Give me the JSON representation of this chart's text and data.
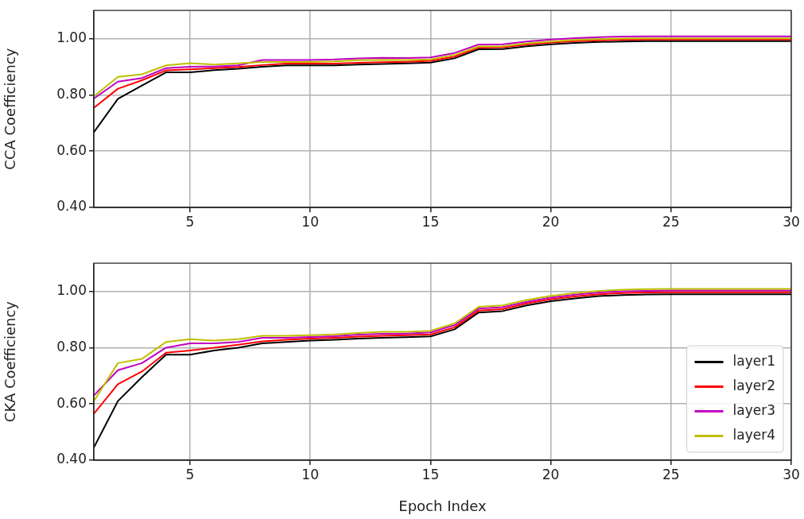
{
  "chart_data": [
    {
      "type": "line",
      "ylabel": "CCA Coefficiency",
      "x": [
        1,
        2,
        3,
        4,
        5,
        6,
        7,
        8,
        9,
        10,
        11,
        12,
        13,
        14,
        15,
        16,
        17,
        18,
        19,
        20,
        21,
        22,
        23,
        24,
        25,
        26,
        27,
        28,
        29,
        30
      ],
      "series": [
        {
          "color": "#000000",
          "values": [
            0.667,
            0.786,
            0.833,
            0.88,
            0.88,
            0.888,
            0.893,
            0.9,
            0.905,
            0.905,
            0.905,
            0.908,
            0.91,
            0.912,
            0.915,
            0.93,
            0.962,
            0.963,
            0.973,
            0.98,
            0.985,
            0.988,
            0.99,
            0.991,
            0.991,
            0.991,
            0.991,
            0.991,
            0.991,
            0.991
          ]
        },
        {
          "color": "#ff0000",
          "values": [
            0.754,
            0.822,
            0.852,
            0.887,
            0.891,
            0.895,
            0.899,
            0.906,
            0.911,
            0.911,
            0.911,
            0.914,
            0.916,
            0.918,
            0.921,
            0.936,
            0.968,
            0.969,
            0.979,
            0.986,
            0.991,
            0.994,
            0.996,
            0.997,
            0.997,
            0.997,
            0.997,
            0.997,
            0.997,
            0.997
          ]
        },
        {
          "color": "#bf00bf",
          "values": [
            0.787,
            0.847,
            0.86,
            0.895,
            0.9,
            0.901,
            0.905,
            0.924,
            0.924,
            0.924,
            0.926,
            0.93,
            0.932,
            0.931,
            0.933,
            0.949,
            0.979,
            0.98,
            0.99,
            0.997,
            1.002,
            1.005,
            1.007,
            1.008,
            1.008,
            1.008,
            1.008,
            1.008,
            1.008,
            1.008
          ]
        },
        {
          "color": "#bfbf00",
          "values": [
            0.795,
            0.864,
            0.873,
            0.905,
            0.913,
            0.908,
            0.912,
            0.917,
            0.917,
            0.917,
            0.919,
            0.923,
            0.925,
            0.924,
            0.926,
            0.942,
            0.972,
            0.973,
            0.983,
            0.99,
            0.995,
            0.998,
            1.0,
            1.001,
            1.001,
            1.001,
            1.001,
            1.001,
            1.001,
            1.001
          ]
        }
      ],
      "xlim": [
        1,
        30
      ],
      "xticks": [
        5,
        10,
        15,
        20,
        25,
        30
      ],
      "ylim": [
        0.4,
        1.1
      ],
      "yticks": [
        {
          "value": 0.4,
          "label": "0.40"
        },
        {
          "value": 0.6,
          "label": "0.60"
        },
        {
          "value": 0.8,
          "label": "0.80"
        },
        {
          "value": 1.0,
          "label": "1.00"
        }
      ],
      "grid": true,
      "marker": "none",
      "line_style": "solid"
    },
    {
      "type": "line",
      "xlabel": "Epoch Index",
      "ylabel": "CKA Coefficiency",
      "x": [
        1,
        2,
        3,
        4,
        5,
        6,
        7,
        8,
        9,
        10,
        11,
        12,
        13,
        14,
        15,
        16,
        17,
        18,
        19,
        20,
        21,
        22,
        23,
        24,
        25,
        26,
        27,
        28,
        29,
        30
      ],
      "series": [
        {
          "name": "layer1",
          "color": "#000000",
          "values": [
            0.445,
            0.61,
            0.695,
            0.775,
            0.775,
            0.79,
            0.8,
            0.815,
            0.82,
            0.825,
            0.828,
            0.832,
            0.835,
            0.837,
            0.84,
            0.865,
            0.925,
            0.93,
            0.95,
            0.965,
            0.975,
            0.983,
            0.987,
            0.989,
            0.99,
            0.99,
            0.99,
            0.99,
            0.99,
            0.99
          ]
        },
        {
          "name": "layer2",
          "color": "#ff0000",
          "values": [
            0.565,
            0.67,
            0.715,
            0.782,
            0.79,
            0.8,
            0.81,
            0.822,
            0.828,
            0.832,
            0.835,
            0.839,
            0.842,
            0.844,
            0.847,
            0.872,
            0.932,
            0.937,
            0.957,
            0.972,
            0.982,
            0.99,
            0.994,
            0.996,
            0.997,
            0.997,
            0.997,
            0.997,
            0.997,
            0.997
          ]
        },
        {
          "name": "layer3",
          "color": "#bf00bf",
          "values": [
            0.63,
            0.72,
            0.745,
            0.8,
            0.815,
            0.815,
            0.82,
            0.835,
            0.835,
            0.838,
            0.841,
            0.846,
            0.849,
            0.85,
            0.854,
            0.88,
            0.939,
            0.944,
            0.963,
            0.978,
            0.988,
            0.996,
            1.0,
            1.002,
            1.003,
            1.003,
            1.003,
            1.003,
            1.003,
            1.003
          ]
        },
        {
          "name": "layer4",
          "color": "#bfbf00",
          "values": [
            0.61,
            0.745,
            0.76,
            0.82,
            0.83,
            0.825,
            0.83,
            0.842,
            0.842,
            0.844,
            0.847,
            0.852,
            0.856,
            0.856,
            0.86,
            0.886,
            0.945,
            0.95,
            0.969,
            0.984,
            0.994,
            1.002,
            1.006,
            1.008,
            1.009,
            1.009,
            1.009,
            1.009,
            1.009,
            1.009
          ]
        }
      ],
      "xlim": [
        1,
        30
      ],
      "xticks": [
        5,
        10,
        15,
        20,
        25,
        30
      ],
      "ylim": [
        0.4,
        1.1
      ],
      "yticks": [
        {
          "value": 0.4,
          "label": "0.40"
        },
        {
          "value": 0.6,
          "label": "0.60"
        },
        {
          "value": 0.8,
          "label": "0.80"
        },
        {
          "value": 1.0,
          "label": "1.00"
        }
      ],
      "grid": true,
      "legend": "bottom right",
      "marker": "none",
      "line_style": "solid"
    }
  ]
}
